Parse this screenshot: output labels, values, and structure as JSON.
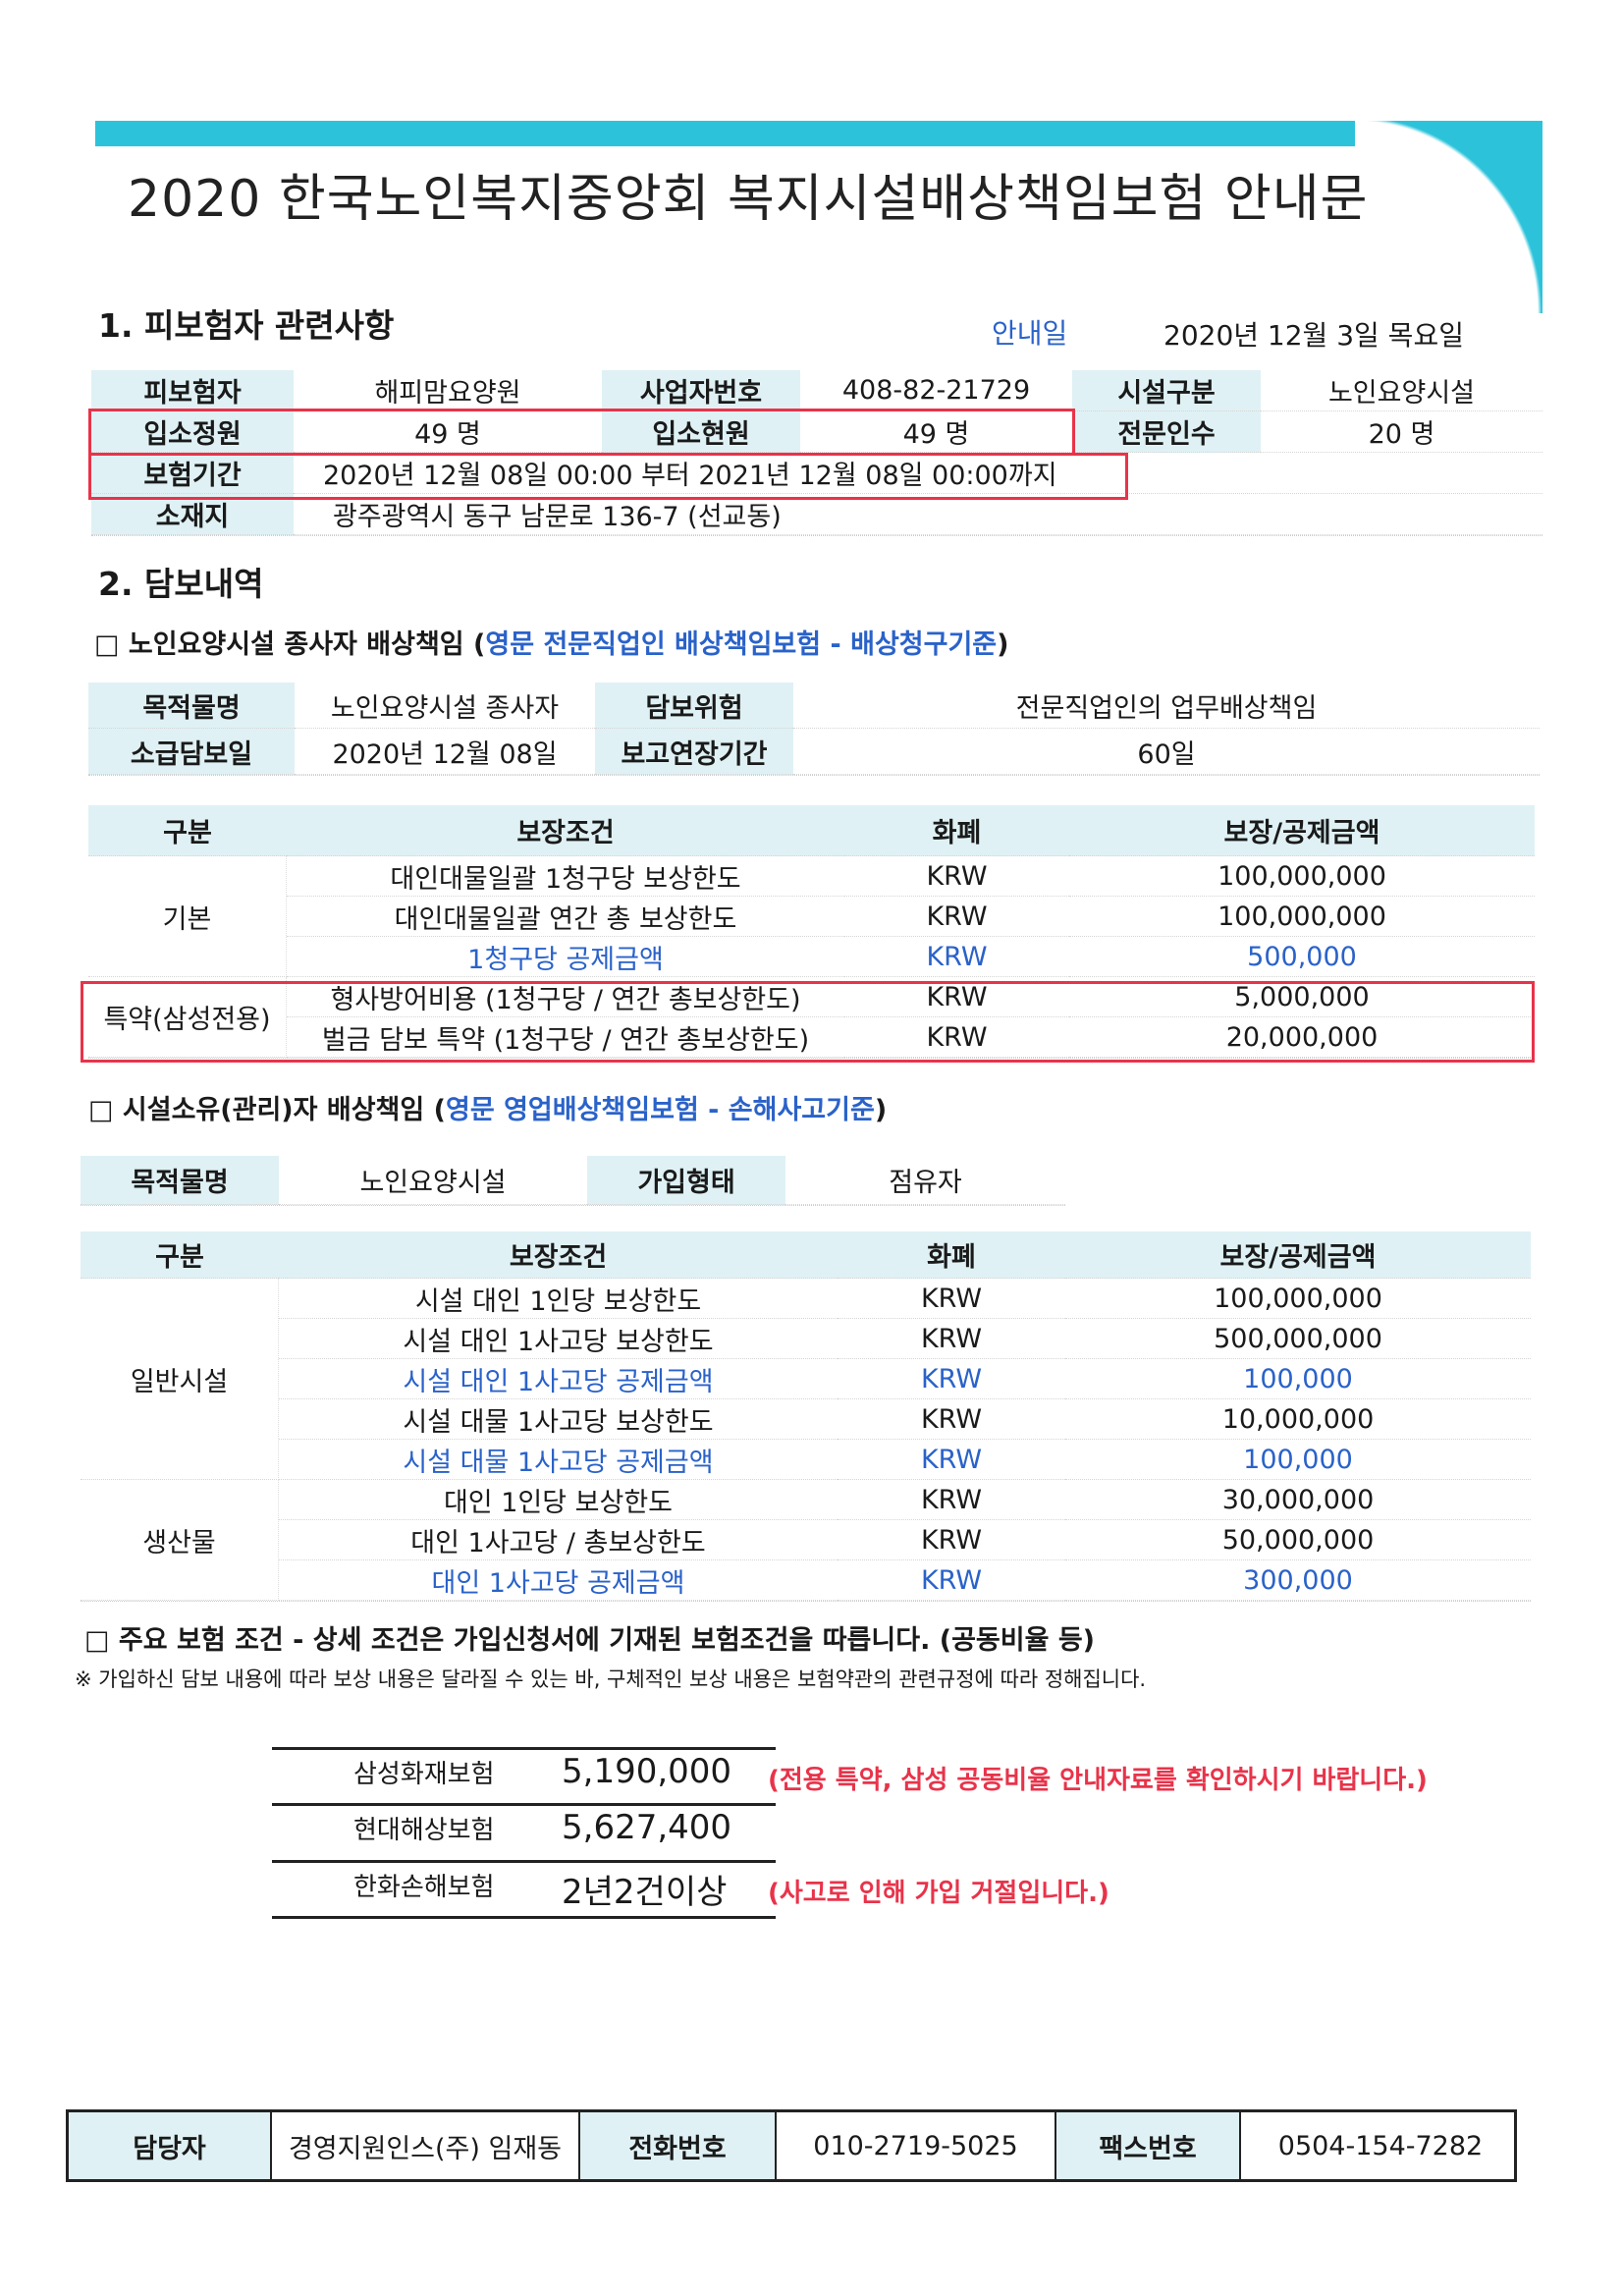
{
  "title": "2020 한국노인복지중앙회 복지시설배상책임보험 안내문",
  "section1": {
    "heading": "1. 피보험자 관련사항",
    "notice_label": "안내일",
    "notice_date": "2020년 12월 3일 목요일",
    "rows": [
      [
        "피보험자",
        "해피맘요양원",
        "사업자번호",
        "408-82-21729",
        "시설구분",
        "노인요양시설"
      ],
      [
        "입소정원",
        "49 명",
        "입소현원",
        "49 명",
        "전문인수",
        "20 명"
      ],
      [
        "보험기간",
        "2020년 12월 08일 00:00 부터   2021년 12월 08일 00:00까지"
      ],
      [
        "소재지",
        "광주광역시 동구 남문로 136-7 (선교동)"
      ]
    ]
  },
  "section2": {
    "heading": "2. 담보내역",
    "sub1": {
      "prefix": "□ 노인요양시설 종사자 배상책임 (",
      "blue": "영문 전문직업인 배상책임보험 - 배상청구기준",
      "suffix": ")"
    },
    "info1": [
      [
        "목적물명",
        "노인요양시설 종사자",
        "담보위험",
        "전문직업인의 업무배상책임"
      ],
      [
        "소급담보일",
        "2020년 12월 08일",
        "보고연장기간",
        "60일"
      ]
    ],
    "headers": [
      "구분",
      "보장조건",
      "화폐",
      "보장/공제금액"
    ],
    "table1": [
      {
        "group": "기본",
        "span": 3,
        "cond": "대인대물일괄 1청구당 보상한도",
        "cur": "KRW",
        "amt": "100,000,000",
        "blue": false
      },
      {
        "cond": "대인대물일괄 연간 총 보상한도",
        "cur": "KRW",
        "amt": "100,000,000",
        "blue": false
      },
      {
        "cond": "1청구당 공제금액",
        "cur": "KRW",
        "amt": "500,000",
        "blue": true
      },
      {
        "group": "특약(삼성전용)",
        "span": 2,
        "cond": "형사방어비용 (1청구당 / 연간 총보상한도)",
        "cur": "KRW",
        "amt": "5,000,000",
        "blue": false
      },
      {
        "cond": "벌금 담보 특약 (1청구당 / 연간 총보상한도)",
        "cur": "KRW",
        "amt": "20,000,000",
        "blue": false
      }
    ],
    "sub2": {
      "prefix": "□ 시설소유(관리)자 배상책임 (",
      "blue": "영문 영업배상책임보험 - 손해사고기준",
      "suffix": ")"
    },
    "info2": [
      "목적물명",
      "노인요양시설",
      "가입형태",
      "점유자"
    ],
    "table2": [
      {
        "group": "일반시설",
        "span": 5,
        "cond": "시설 대인 1인당 보상한도",
        "cur": "KRW",
        "amt": "100,000,000",
        "blue": false
      },
      {
        "cond": "시설 대인 1사고당 보상한도",
        "cur": "KRW",
        "amt": "500,000,000",
        "blue": false
      },
      {
        "cond": "시설 대인 1사고당 공제금액",
        "cur": "KRW",
        "amt": "100,000",
        "blue": true
      },
      {
        "cond": "시설 대물 1사고당 보상한도",
        "cur": "KRW",
        "amt": "10,000,000",
        "blue": false
      },
      {
        "cond": "시설 대물 1사고당 공제금액",
        "cur": "KRW",
        "amt": "100,000",
        "blue": true
      },
      {
        "group": "생산물",
        "span": 3,
        "cond": "대인 1인당 보상한도",
        "cur": "KRW",
        "amt": "30,000,000",
        "blue": false
      },
      {
        "cond": "대인 1사고당 / 총보상한도",
        "cur": "KRW",
        "amt": "50,000,000",
        "blue": false
      },
      {
        "cond": "대인 1사고당 공제금액",
        "cur": "KRW",
        "amt": "300,000",
        "blue": true
      }
    ]
  },
  "conditions": {
    "heading": "□ 주요 보험 조건 - 상세 조건은 가입신청서에 기재된 보험조건을 따릅니다. (공동비율 등)",
    "note": "※ 가입하신 담보 내용에 따라 보상 내용은 달라질 수 있는 바, 구체적인 보상 내용은 보험약관의 관련규정에 따라 정해집니다."
  },
  "premiums": [
    {
      "insurer": "삼성화재보험",
      "value": "5,190,000",
      "remark": "(전용 특약, 삼성 공동비율 안내자료를 확인하시기 바랍니다.)"
    },
    {
      "insurer": "현대해상보험",
      "value": "5,627,400",
      "remark": ""
    },
    {
      "insurer": "한화손해보험",
      "value": "2년2건이상",
      "remark": "(사고로 인해 가입 거절입니다.)"
    }
  ],
  "footer": [
    "담당자",
    "경영지원인스(주) 임재동",
    "전화번호",
    "010-2719-5025",
    "팩스번호",
    "0504-154-7282"
  ],
  "colors": {
    "banner": "#2cc3da",
    "label_bg": "#dff1f4",
    "blue": "#2a62c9",
    "red": "#e8334a"
  }
}
